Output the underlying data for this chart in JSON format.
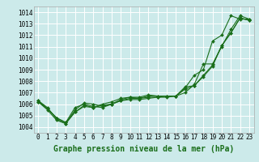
{
  "title": "Graphe pression niveau de la mer (hPa)",
  "bg_color": "#cceaea",
  "grid_color": "#ffffff",
  "line_color": "#1a6e1a",
  "xlim": [
    -0.5,
    23.5
  ],
  "ylim": [
    1003.5,
    1014.5
  ],
  "xticks": [
    0,
    1,
    2,
    3,
    4,
    5,
    6,
    7,
    8,
    9,
    10,
    11,
    12,
    13,
    14,
    15,
    16,
    17,
    18,
    19,
    20,
    21,
    22,
    23
  ],
  "yticks": [
    1004,
    1005,
    1006,
    1007,
    1008,
    1009,
    1010,
    1011,
    1012,
    1013,
    1014
  ],
  "series": [
    [
      1006.3,
      1005.7,
      1004.7,
      1004.3,
      1005.5,
      1006.1,
      1006.0,
      1005.8,
      1006.0,
      1006.3,
      1006.5,
      1006.5,
      1006.6,
      1006.6,
      1006.7,
      1006.7,
      1007.3,
      1007.6,
      1008.5,
      1009.4,
      1011.1,
      1012.2,
      1013.5,
      1013.3
    ],
    [
      1006.3,
      1005.6,
      1004.8,
      1004.4,
      1005.7,
      1006.0,
      1005.8,
      1005.7,
      1006.0,
      1006.4,
      1006.6,
      1006.6,
      1006.8,
      1006.7,
      1006.7,
      1006.7,
      1007.4,
      1008.5,
      1009.0,
      1011.5,
      1012.0,
      1013.7,
      1013.4,
      1013.4
    ],
    [
      1006.2,
      1005.6,
      1004.8,
      1004.4,
      1005.3,
      1005.9,
      1005.7,
      1006.0,
      1006.2,
      1006.5,
      1006.6,
      1006.5,
      1006.7,
      1006.7,
      1006.7,
      1006.7,
      1007.0,
      1007.7,
      1009.5,
      1009.5,
      1011.0,
      1012.5,
      1013.7,
      1013.4
    ],
    [
      1006.2,
      1005.5,
      1004.6,
      1004.3,
      1005.3,
      1005.8,
      1005.7,
      1005.9,
      1006.0,
      1006.3,
      1006.4,
      1006.4,
      1006.5,
      1006.6,
      1006.6,
      1006.7,
      1007.5,
      1007.6,
      1008.4,
      1009.3,
      1011.1,
      1012.2,
      1013.5,
      1013.3
    ]
  ],
  "marker": "D",
  "markersize": 2.0,
  "linewidth": 0.8,
  "xlabel_fontsize": 7,
  "tick_fontsize": 5.5
}
